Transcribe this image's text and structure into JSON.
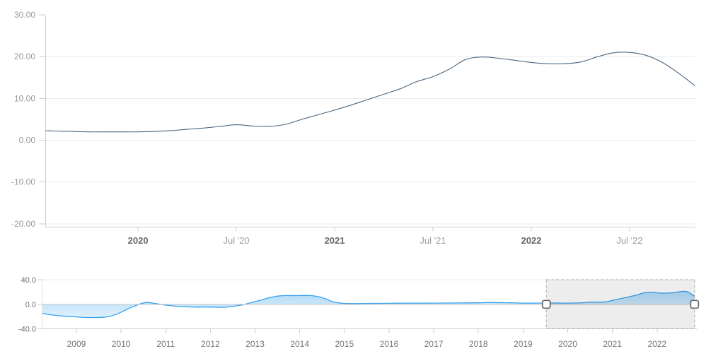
{
  "colors": {
    "main_line": "#4a6680",
    "nav_line": "#36a2ee",
    "nav_fill_top_opacity": 0.5,
    "nav_fill_bottom_opacity": 0.05,
    "grid": "#ebebeb",
    "axis": "#cccccc",
    "nav_zero_line": "#c6c6c6",
    "nav_axis_line": "#cccccc",
    "mask_fill": "rgba(0,0,0,0.07)",
    "mask_border": "#ababab",
    "handle_fill": "#ffffff",
    "handle_border": "#666666"
  },
  "chart_data": [
    {
      "type": "line",
      "name": "main-indicator-chart",
      "title": "",
      "x_domain": [
        2019.53,
        2022.835
      ],
      "y_domain": [
        -20.7,
        30
      ],
      "grid": true,
      "legend": "none",
      "y_ticks": [
        {
          "value": 30,
          "label": "30.00"
        },
        {
          "value": 20,
          "label": "20.00"
        },
        {
          "value": 10,
          "label": "10.00"
        },
        {
          "value": 0,
          "label": "0.00"
        },
        {
          "value": -10,
          "label": "-10.00"
        },
        {
          "value": -20,
          "label": "-20.00"
        }
      ],
      "x_ticks": [
        {
          "value": 2020.0,
          "label": "2020",
          "bold": true
        },
        {
          "value": 2020.5,
          "label": "Jul '20",
          "bold": false
        },
        {
          "value": 2021.0,
          "label": "2021",
          "bold": true
        },
        {
          "value": 2021.5,
          "label": "Jul '21",
          "bold": false
        },
        {
          "value": 2022.0,
          "label": "2022",
          "bold": true
        },
        {
          "value": 2022.5,
          "label": "Jul '22",
          "bold": false
        }
      ],
      "series": [
        {
          "name": "indicator",
          "start_year": 2019,
          "start_month": 7,
          "frequency": "monthly",
          "values": [
            2.3,
            2.2,
            2.1,
            2.0,
            2.0,
            2.0,
            2.0,
            2.1,
            2.3,
            2.6,
            2.9,
            3.3,
            3.7,
            3.4,
            3.3,
            3.8,
            5.0,
            6.1,
            7.2,
            8.4,
            9.7,
            11.0,
            12.3,
            14.0,
            15.2,
            17.0,
            19.3,
            19.9,
            19.6,
            19.1,
            18.6,
            18.3,
            18.3,
            18.7,
            19.9,
            20.9,
            21.0,
            20.3,
            18.6,
            16.0,
            13.0
          ]
        }
      ]
    },
    {
      "type": "area",
      "name": "navigator-chart",
      "x_domain": [
        2008.24,
        2022.89
      ],
      "y_domain": [
        -42,
        42
      ],
      "baseline": 0,
      "y_ticks": [
        {
          "value": 40,
          "label": "40.0"
        },
        {
          "value": 0,
          "label": "0.0"
        },
        {
          "value": -40,
          "label": "-40.0"
        }
      ],
      "x_ticks": [
        {
          "value": 2009,
          "label": "2009"
        },
        {
          "value": 2010,
          "label": "2010"
        },
        {
          "value": 2011,
          "label": "2011"
        },
        {
          "value": 2012,
          "label": "2012"
        },
        {
          "value": 2013,
          "label": "2013"
        },
        {
          "value": 2014,
          "label": "2014"
        },
        {
          "value": 2015,
          "label": "2015"
        },
        {
          "value": 2016,
          "label": "2016"
        },
        {
          "value": 2017,
          "label": "2017"
        },
        {
          "value": 2018,
          "label": "2018"
        },
        {
          "value": 2019,
          "label": "2019"
        },
        {
          "value": 2020,
          "label": "2020"
        },
        {
          "value": 2021,
          "label": "2021"
        },
        {
          "value": 2022,
          "label": "2022"
        }
      ],
      "points": [
        [
          2008.24,
          -15
        ],
        [
          2008.42,
          -17
        ],
        [
          2008.58,
          -18.5
        ],
        [
          2008.75,
          -19.5
        ],
        [
          2008.92,
          -20.3
        ],
        [
          2009.08,
          -21
        ],
        [
          2009.25,
          -21.5
        ],
        [
          2009.42,
          -21.6
        ],
        [
          2009.58,
          -21.2
        ],
        [
          2009.75,
          -19.5
        ],
        [
          2009.92,
          -15.5
        ],
        [
          2010.08,
          -10
        ],
        [
          2010.25,
          -4.5
        ],
        [
          2010.42,
          0.5
        ],
        [
          2010.58,
          3.0
        ],
        [
          2010.75,
          1.5
        ],
        [
          2010.92,
          -0.5
        ],
        [
          2011.08,
          -2
        ],
        [
          2011.25,
          -3.2
        ],
        [
          2011.42,
          -4
        ],
        [
          2011.58,
          -4.4
        ],
        [
          2011.75,
          -4.6
        ],
        [
          2011.92,
          -4.5
        ],
        [
          2012.08,
          -4.6
        ],
        [
          2012.25,
          -5
        ],
        [
          2012.42,
          -4.2
        ],
        [
          2012.58,
          -2.5
        ],
        [
          2012.75,
          -0.5
        ],
        [
          2012.92,
          3
        ],
        [
          2013.08,
          6
        ],
        [
          2013.25,
          9.5
        ],
        [
          2013.42,
          12.5
        ],
        [
          2013.58,
          14
        ],
        [
          2013.75,
          14.3
        ],
        [
          2013.92,
          14.2
        ],
        [
          2014.08,
          14.5
        ],
        [
          2014.25,
          14.2
        ],
        [
          2014.42,
          12.5
        ],
        [
          2014.58,
          9
        ],
        [
          2014.75,
          4
        ],
        [
          2014.92,
          2
        ],
        [
          2015.08,
          1.3
        ],
        [
          2015.25,
          1.2
        ],
        [
          2015.42,
          1.4
        ],
        [
          2015.58,
          1.5
        ],
        [
          2015.75,
          1.5
        ],
        [
          2015.92,
          1.6
        ],
        [
          2016.08,
          1.7
        ],
        [
          2016.25,
          1.8
        ],
        [
          2016.42,
          1.8
        ],
        [
          2016.58,
          1.9
        ],
        [
          2016.75,
          1.9
        ],
        [
          2016.92,
          2.0
        ],
        [
          2017.08,
          2.0
        ],
        [
          2017.25,
          2.1
        ],
        [
          2017.42,
          2.1
        ],
        [
          2017.58,
          2.2
        ],
        [
          2017.75,
          2.3
        ],
        [
          2017.92,
          2.4
        ],
        [
          2018.08,
          2.6
        ],
        [
          2018.25,
          3.0
        ],
        [
          2018.42,
          2.9
        ],
        [
          2018.58,
          2.7
        ],
        [
          2018.75,
          2.4
        ],
        [
          2018.92,
          2.1
        ],
        [
          2019.08,
          1.9
        ],
        [
          2019.25,
          2.0
        ],
        [
          2019.42,
          2.1
        ],
        [
          2019.54,
          2.3
        ],
        [
          2019.71,
          2.1
        ],
        [
          2019.87,
          2.0
        ],
        [
          2020.04,
          2.0
        ],
        [
          2020.21,
          2.2
        ],
        [
          2020.37,
          2.7
        ],
        [
          2020.54,
          3.6
        ],
        [
          2020.71,
          3.4
        ],
        [
          2020.87,
          4.2
        ],
        [
          2021.04,
          7.2
        ],
        [
          2021.21,
          9.7
        ],
        [
          2021.37,
          12.2
        ],
        [
          2021.54,
          15.2
        ],
        [
          2021.71,
          18.8
        ],
        [
          2021.87,
          19.8
        ],
        [
          2022.04,
          18.5
        ],
        [
          2022.21,
          18.3
        ],
        [
          2022.37,
          19.0
        ],
        [
          2022.54,
          21.0
        ],
        [
          2022.63,
          21.0
        ],
        [
          2022.71,
          19.5
        ],
        [
          2022.84,
          13.0
        ]
      ],
      "selection": {
        "start": 2019.52,
        "end": 2022.84
      }
    }
  ]
}
